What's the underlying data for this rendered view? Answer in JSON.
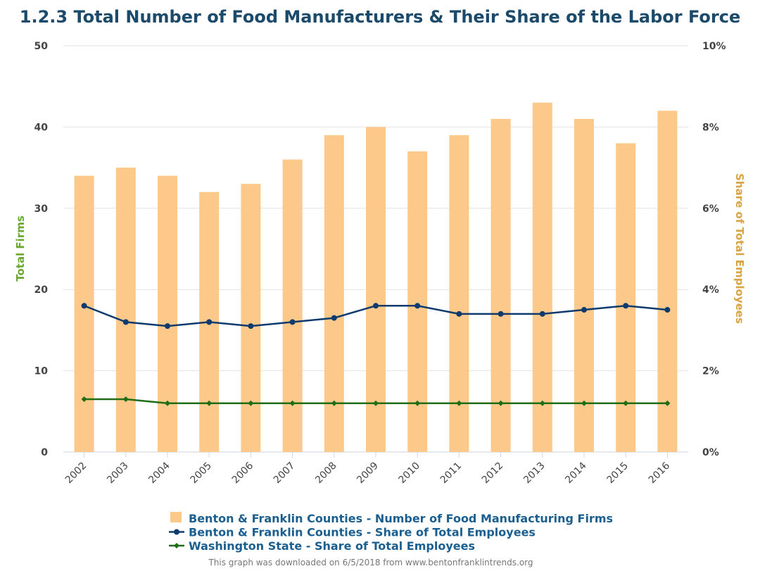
{
  "chart_data": {
    "type": "bar",
    "title": "1.2.3 Total Number of Food Manufacturers & Their Share of the Labor Force",
    "categories": [
      "2002",
      "2003",
      "2004",
      "2005",
      "2006",
      "2007",
      "2008",
      "2009",
      "2010",
      "2011",
      "2012",
      "2013",
      "2014",
      "2015",
      "2016"
    ],
    "y_left": {
      "label": "Total Firms",
      "range": [
        0,
        50
      ],
      "ticks": [
        "0",
        "10",
        "20",
        "30",
        "40",
        "50"
      ]
    },
    "y_right": {
      "label": "Share of Total Employees",
      "range": [
        0,
        10
      ],
      "ticks": [
        "0%",
        "2%",
        "4%",
        "6%",
        "8%",
        "10%"
      ]
    },
    "grid": true,
    "legend_position": "bottom",
    "series": [
      {
        "name": "Benton & Franklin Counties - Number of Food Manufacturing Firms",
        "type": "bar",
        "axis": "left",
        "color": "#fcc98a",
        "values": [
          34,
          35,
          34,
          32,
          33,
          36,
          39,
          40,
          37,
          39,
          41,
          43,
          41,
          38,
          42
        ]
      },
      {
        "name": "Benton & Franklin Counties - Share of Total Employees",
        "type": "line",
        "axis": "right",
        "color": "#0f3a6e",
        "marker": "circle",
        "values": [
          3.6,
          3.2,
          3.1,
          3.2,
          3.1,
          3.2,
          3.3,
          3.6,
          3.6,
          3.4,
          3.4,
          3.4,
          3.5,
          3.6,
          3.5
        ]
      },
      {
        "name": "Washington State - Share of Total Employees",
        "type": "line",
        "axis": "right",
        "color": "#1f6d14",
        "marker": "diamond",
        "values": [
          1.3,
          1.3,
          1.2,
          1.2,
          1.2,
          1.2,
          1.2,
          1.2,
          1.2,
          1.2,
          1.2,
          1.2,
          1.2,
          1.2,
          1.2
        ]
      }
    ],
    "credit": "This graph was downloaded on 6/5/2018 from www.bentonfranklintrends.org"
  }
}
